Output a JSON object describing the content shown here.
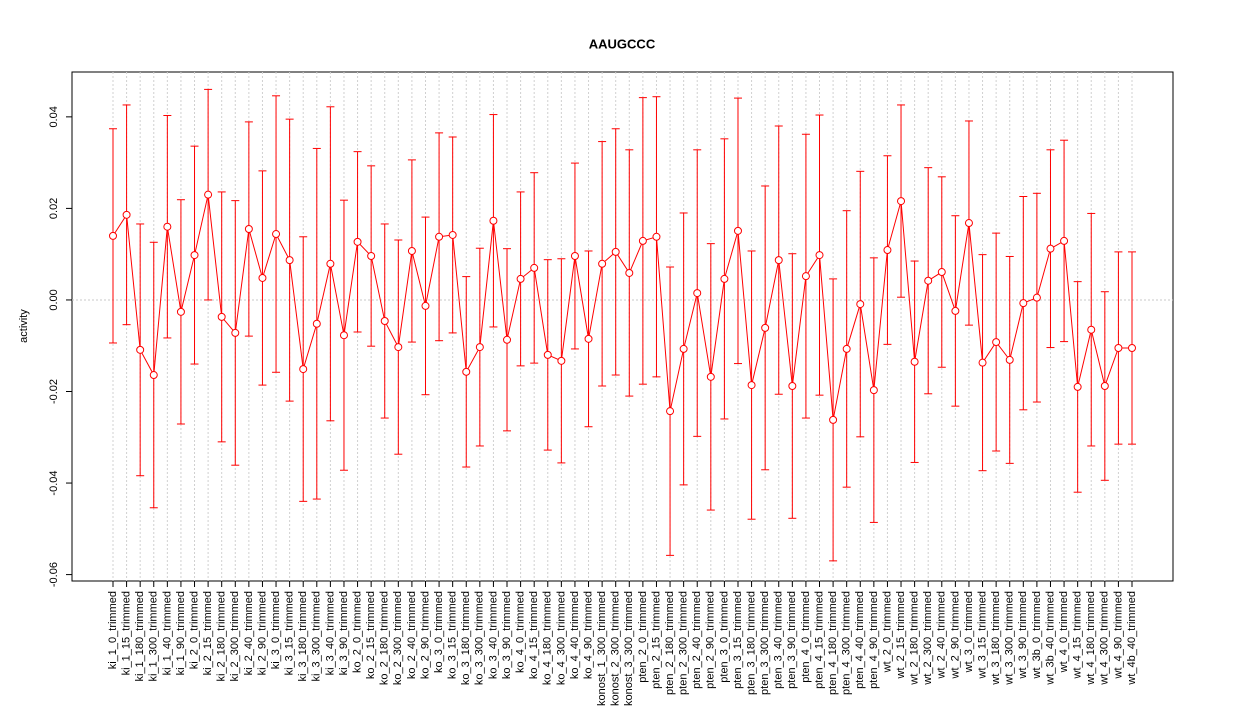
{
  "chart_data": {
    "type": "errorbar",
    "title": "AAUGCCC",
    "ylabel": "activity",
    "color": "#ff0000",
    "grid": true,
    "hline": 0,
    "ylim": [
      -0.0614,
      0.0498
    ],
    "yticks": [
      -0.06,
      -0.04,
      -0.02,
      {
        "value": 0,
        "label": "0.00"
      },
      0.02,
      0.04
    ],
    "categories": [
      "ki_1_0_trimmed",
      "ki_1_15_trimmed",
      "ki_1_180_trimmed",
      "ki_1_300_trimmed",
      "ki_1_40_trimmed",
      "ki_1_90_trimmed",
      "ki_2_0_trimmed",
      "ki_2_15_trimmed",
      "ki_2_180_trimmed",
      "ki_2_300_trimmed",
      "ki_2_40_trimmed",
      "ki_2_90_trimmed",
      "ki_3_0_trimmed",
      "ki_3_15_trimmed",
      "ki_3_180_trimmed",
      "ki_3_300_trimmed",
      "ki_3_40_trimmed",
      "ki_3_90_trimmed",
      "ko_2_0_trimmed",
      "ko_2_15_trimmed",
      "ko_2_180_trimmed",
      "ko_2_300_trimmed",
      "ko_2_40_trimmed",
      "ko_2_90_trimmed",
      "ko_3_0_trimmed",
      "ko_3_15_trimmed",
      "ko_3_180_trimmed",
      "ko_3_300_trimmed",
      "ko_3_40_trimmed",
      "ko_3_90_trimmed",
      "ko_4_0_trimmed",
      "ko_4_15_trimmed",
      "ko_4_180_trimmed",
      "ko_4_300_trimmed",
      "ko_4_40_trimmed",
      "ko_4_90_trimmed",
      "konost_1_300_trimmed",
      "konost_2_300_trimmed",
      "konost_3_300_trimmed",
      "pten_2_0_trimmed",
      "pten_2_15_trimmed",
      "pten_2_180_trimmed",
      "pten_2_300_trimmed",
      "pten_2_40_trimmed",
      "pten_2_90_trimmed",
      "pten_3_0_trimmed",
      "pten_3_15_trimmed",
      "pten_3_180_trimmed",
      "pten_3_300_trimmed",
      "pten_3_40_trimmed",
      "pten_3_90_trimmed",
      "pten_4_0_trimmed",
      "pten_4_15_trimmed",
      "pten_4_180_trimmed",
      "pten_4_300_trimmed",
      "pten_4_40_trimmed",
      "pten_4_90_trimmed",
      "wt_2_0_trimmed",
      "wt_2_15_trimmed",
      "wt_2_180_trimmed",
      "wt_2_300_trimmed",
      "wt_2_40_trimmed",
      "wt_2_90_trimmed",
      "wt_3_0_trimmed",
      "wt_3_15_trimmed",
      "wt_3_180_trimmed",
      "wt_3_300_trimmed",
      "wt_3_90_trimmed",
      "wt_3b_0_trimmed",
      "wt_3b_40_trimmed",
      "wt_4_0_trimmed",
      "wt_4_15_trimmed",
      "wt_4_180_trimmed",
      "wt_4_300_trimmed",
      "wt_4_90_trimmed",
      "wt_4b_40_trimmed"
    ],
    "values": [
      0.014,
      0.0186,
      -0.0109,
      -0.0164,
      0.016,
      -0.0026,
      0.0098,
      0.023,
      -0.0037,
      -0.0072,
      0.0155,
      0.0048,
      0.0144,
      0.0087,
      -0.0151,
      -0.0052,
      0.0079,
      -0.0077,
      0.0127,
      0.0096,
      -0.0046,
      -0.0103,
      0.0107,
      -0.0013,
      0.0138,
      0.0142,
      -0.0157,
      -0.0103,
      0.0173,
      -0.0087,
      0.0046,
      0.007,
      -0.012,
      -0.0133,
      0.0096,
      -0.0085,
      0.0079,
      0.0105,
      0.0059,
      0.0129,
      0.0138,
      -0.0243,
      -0.0107,
      0.0015,
      -0.0168,
      0.0046,
      0.0151,
      -0.0186,
      -0.0061,
      0.0087,
      -0.0188,
      0.0052,
      0.0098,
      -0.0262,
      -0.0107,
      -0.0009,
      -0.0197,
      0.0109,
      0.0216,
      -0.0135,
      0.0042,
      0.0061,
      -0.0024,
      0.0168,
      -0.0137,
      -0.0092,
      -0.0131,
      -0.0007,
      0.0005,
      0.0112,
      0.0129,
      -0.019,
      -0.0065,
      -0.0188,
      -0.0105,
      -0.0105
    ],
    "errors": [
      0.0234,
      0.024,
      0.0275,
      0.029,
      0.0243,
      0.0245,
      0.0238,
      0.023,
      0.0273,
      0.0289,
      0.0234,
      0.0234,
      0.0302,
      0.0308,
      0.0289,
      0.0383,
      0.0343,
      0.0295,
      0.0197,
      0.0197,
      0.0212,
      0.0234,
      0.0199,
      0.0194,
      0.0227,
      0.0214,
      0.0208,
      0.0216,
      0.0232,
      0.0199,
      0.019,
      0.0208,
      0.0208,
      0.0223,
      0.0203,
      0.0192,
      0.0267,
      0.0269,
      0.0269,
      0.0313,
      0.0306,
      0.0315,
      0.0297,
      0.0313,
      0.0291,
      0.0306,
      0.029,
      0.0293,
      0.031,
      0.0293,
      0.0289,
      0.031,
      0.0306,
      0.0308,
      0.0302,
      0.029,
      0.0289,
      0.0206,
      0.021,
      0.022,
      0.0247,
      0.0208,
      0.0208,
      0.0223,
      0.0236,
      0.0238,
      0.0226,
      0.0233,
      0.0228,
      0.0216,
      0.022,
      0.023,
      0.0254,
      0.0206,
      0.021,
      0.021
    ]
  }
}
